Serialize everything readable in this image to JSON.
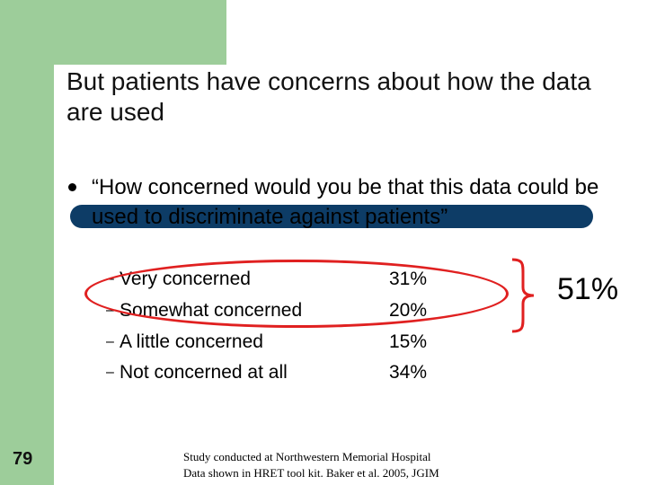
{
  "slide": {
    "title": "But patients have concerns about how the data are used",
    "question": "“How concerned would you be that this data could be used to discriminate against patients”",
    "responses": [
      {
        "label": "Very concerned",
        "value": "31%"
      },
      {
        "label": "Somewhat concerned",
        "value": "20%"
      },
      {
        "label": "A little concerned",
        "value": "15%"
      },
      {
        "label": "Not concerned at all",
        "value": "34%"
      }
    ],
    "combined_percent": "51%",
    "slide_number": "79",
    "footnote": {
      "line1": "Study conducted at Northwestern Memorial Hospital",
      "line2": "Data shown in HRET tool kit. Baker et al. 2005, JGIM"
    }
  },
  "colors": {
    "green_bar": "#9dcd9a",
    "navy_rule": "#0d3c66",
    "highlight_red": "#e02020"
  }
}
